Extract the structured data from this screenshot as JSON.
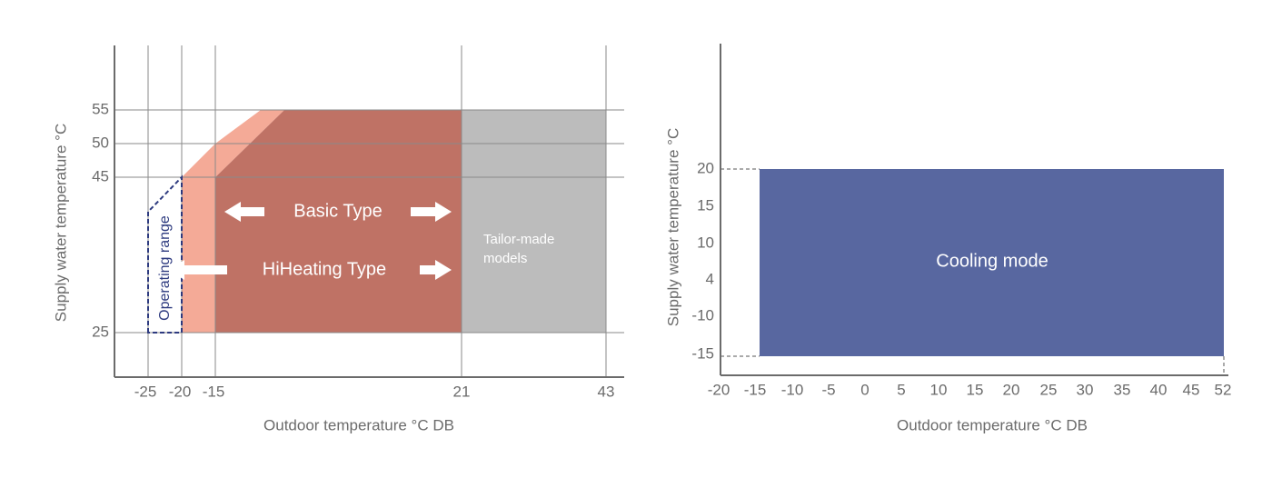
{
  "heating": {
    "y_axis_label": "Supply water temperature °C",
    "x_axis_label": "Outdoor temperature °C DB",
    "y_ticks": [
      "55",
      "50",
      "45",
      "25"
    ],
    "x_ticks": [
      "-25",
      "-20",
      "-15",
      "21",
      "43"
    ],
    "labels": {
      "basic": "Basic Type",
      "hiheating": "HiHeating Type",
      "operating": "Operating range",
      "tailor_1": "Tailor-made",
      "tailor_2": "models"
    }
  },
  "cooling": {
    "y_axis_label": "Supply water temperature °C",
    "x_axis_label": "Outdoor temperature °C DB",
    "y_ticks": [
      "20",
      "15",
      "10",
      "4",
      "-10",
      "-15"
    ],
    "x_ticks": [
      "-20",
      "-15",
      "-10",
      "-5",
      "0",
      "5",
      "10",
      "15",
      "20",
      "25",
      "30",
      "35",
      "40",
      "45",
      "52"
    ],
    "label": "Cooling mode"
  }
}
